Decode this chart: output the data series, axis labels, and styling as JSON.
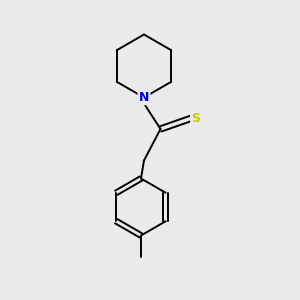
{
  "background_color": "#ebebeb",
  "bond_color": "#000000",
  "N_color": "#0000ee",
  "S_color": "#cccc00",
  "font_size": 9,
  "bond_width": 1.4,
  "figsize": [
    3.0,
    3.0
  ],
  "dpi": 100,
  "xlim": [
    0,
    10
  ],
  "ylim": [
    0,
    10
  ]
}
